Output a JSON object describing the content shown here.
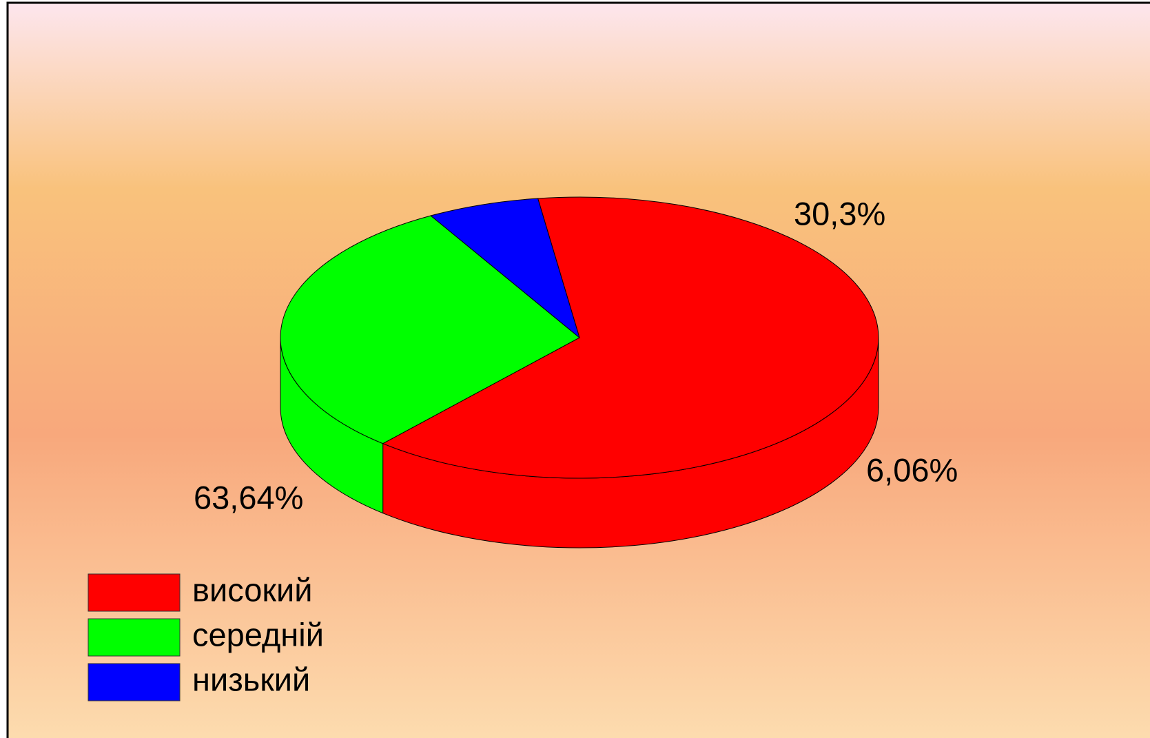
{
  "chart_data": {
    "type": "pie",
    "categories": [
      "високий",
      "середній",
      "низький"
    ],
    "values": [
      63.64,
      30.3,
      6.06
    ],
    "value_labels": [
      "63,64%",
      "30,3%",
      "6,06%"
    ],
    "colors": [
      "#ff0000",
      "#00ff00",
      "#0000ff"
    ]
  }
}
